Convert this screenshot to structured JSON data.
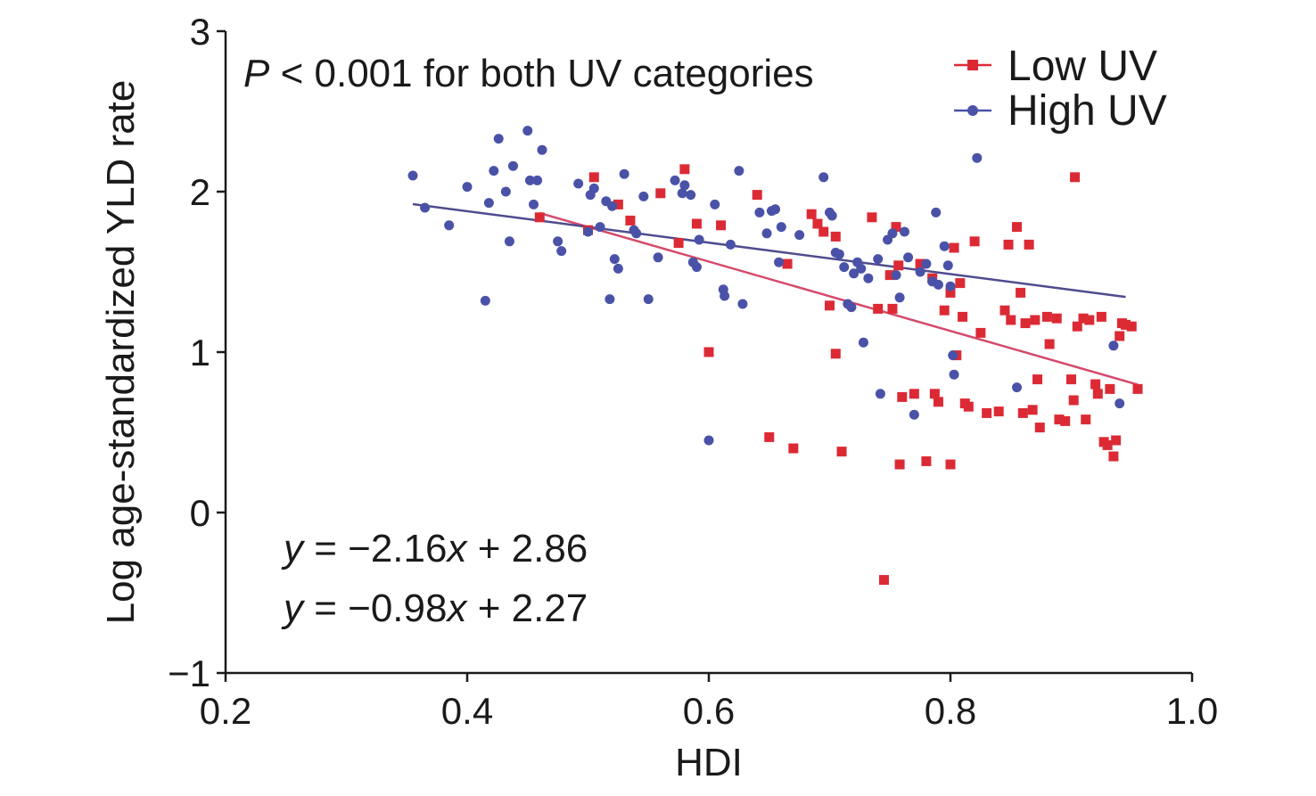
{
  "chart_data": {
    "type": "scatter",
    "title": "",
    "xlabel": "HDI",
    "ylabel": "Log age-standardized YLD rate",
    "xlim": [
      0.2,
      1.0
    ],
    "ylim": [
      -1,
      3
    ],
    "xticks": [
      "0.2",
      "0.4",
      "0.6",
      "0.8",
      "1.0"
    ],
    "yticks": [
      "−1",
      "0",
      "1",
      "2",
      "3"
    ],
    "grid": false,
    "legend_position": "top-right",
    "annotation": {
      "p_italic": "P",
      "p_rest": " < 0.001 for both UV categories"
    },
    "equations": [
      {
        "y": "y",
        "mid": " = −2.16",
        "x": "x",
        "tail": " + 2.86"
      },
      {
        "y": "y",
        "mid": " = −0.98",
        "x": "x",
        "tail": " + 2.27"
      }
    ],
    "series": [
      {
        "name": "Low UV",
        "color": "#dc2a35",
        "marker": "square",
        "line_color": "#d44a6c",
        "fit": {
          "slope": -2.16,
          "intercept": 2.86,
          "x_range": [
            0.46,
            0.955
          ]
        },
        "points": [
          [
            0.46,
            1.84
          ],
          [
            0.5,
            1.76
          ],
          [
            0.505,
            2.09
          ],
          [
            0.525,
            1.92
          ],
          [
            0.535,
            1.82
          ],
          [
            0.56,
            1.99
          ],
          [
            0.575,
            1.68
          ],
          [
            0.58,
            2.14
          ],
          [
            0.59,
            1.8
          ],
          [
            0.6,
            1.0
          ],
          [
            0.61,
            1.79
          ],
          [
            0.64,
            1.98
          ],
          [
            0.65,
            0.47
          ],
          [
            0.665,
            1.55
          ],
          [
            0.67,
            0.4
          ],
          [
            0.685,
            1.86
          ],
          [
            0.69,
            1.8
          ],
          [
            0.695,
            1.75
          ],
          [
            0.7,
            1.29
          ],
          [
            0.705,
            1.72
          ],
          [
            0.705,
            0.99
          ],
          [
            0.71,
            0.38
          ],
          [
            0.735,
            1.84
          ],
          [
            0.74,
            1.27
          ],
          [
            0.745,
            -0.42
          ],
          [
            0.75,
            1.48
          ],
          [
            0.752,
            1.27
          ],
          [
            0.755,
            1.78
          ],
          [
            0.757,
            1.54
          ],
          [
            0.758,
            0.3
          ],
          [
            0.76,
            0.72
          ],
          [
            0.77,
            0.74
          ],
          [
            0.775,
            1.55
          ],
          [
            0.78,
            0.32
          ],
          [
            0.785,
            1.46
          ],
          [
            0.787,
            0.74
          ],
          [
            0.79,
            0.69
          ],
          [
            0.795,
            1.26
          ],
          [
            0.8,
            1.37
          ],
          [
            0.8,
            0.3
          ],
          [
            0.803,
            1.65
          ],
          [
            0.805,
            0.98
          ],
          [
            0.808,
            1.43
          ],
          [
            0.81,
            1.22
          ],
          [
            0.812,
            0.68
          ],
          [
            0.815,
            0.66
          ],
          [
            0.82,
            1.69
          ],
          [
            0.825,
            1.12
          ],
          [
            0.83,
            0.62
          ],
          [
            0.84,
            0.63
          ],
          [
            0.845,
            1.26
          ],
          [
            0.848,
            1.67
          ],
          [
            0.85,
            1.2
          ],
          [
            0.855,
            1.78
          ],
          [
            0.858,
            1.37
          ],
          [
            0.86,
            0.62
          ],
          [
            0.862,
            1.18
          ],
          [
            0.865,
            1.67
          ],
          [
            0.868,
            0.64
          ],
          [
            0.87,
            1.2
          ],
          [
            0.872,
            0.83
          ],
          [
            0.874,
            0.53
          ],
          [
            0.88,
            1.22
          ],
          [
            0.882,
            1.05
          ],
          [
            0.888,
            1.21
          ],
          [
            0.89,
            0.58
          ],
          [
            0.895,
            0.57
          ],
          [
            0.9,
            0.83
          ],
          [
            0.902,
            0.7
          ],
          [
            0.903,
            2.09
          ],
          [
            0.905,
            1.16
          ],
          [
            0.91,
            1.21
          ],
          [
            0.912,
            0.58
          ],
          [
            0.915,
            1.2
          ],
          [
            0.92,
            0.8
          ],
          [
            0.922,
            0.74
          ],
          [
            0.925,
            1.22
          ],
          [
            0.927,
            0.44
          ],
          [
            0.93,
            0.42
          ],
          [
            0.932,
            0.77
          ],
          [
            0.935,
            0.35
          ],
          [
            0.937,
            0.45
          ],
          [
            0.94,
            1.1
          ],
          [
            0.942,
            1.18
          ],
          [
            0.945,
            1.17
          ],
          [
            0.95,
            1.16
          ],
          [
            0.955,
            0.77
          ]
        ]
      },
      {
        "name": "High UV",
        "color": "#4a52a8",
        "marker": "circle",
        "line_color": "#4e4c8e",
        "fit": {
          "slope": -0.98,
          "intercept": 2.27,
          "x_range": [
            0.355,
            0.945
          ]
        },
        "points": [
          [
            0.355,
            2.1
          ],
          [
            0.365,
            1.9
          ],
          [
            0.385,
            1.79
          ],
          [
            0.4,
            2.03
          ],
          [
            0.415,
            1.32
          ],
          [
            0.418,
            1.93
          ],
          [
            0.422,
            2.13
          ],
          [
            0.426,
            2.33
          ],
          [
            0.432,
            2.0
          ],
          [
            0.435,
            1.69
          ],
          [
            0.438,
            2.16
          ],
          [
            0.45,
            2.38
          ],
          [
            0.452,
            2.07
          ],
          [
            0.455,
            1.92
          ],
          [
            0.458,
            2.07
          ],
          [
            0.462,
            2.26
          ],
          [
            0.475,
            1.69
          ],
          [
            0.478,
            1.63
          ],
          [
            0.492,
            2.05
          ],
          [
            0.5,
            1.75
          ],
          [
            0.502,
            1.98
          ],
          [
            0.505,
            2.02
          ],
          [
            0.51,
            1.78
          ],
          [
            0.515,
            1.94
          ],
          [
            0.518,
            1.33
          ],
          [
            0.52,
            1.91
          ],
          [
            0.522,
            1.58
          ],
          [
            0.525,
            1.52
          ],
          [
            0.53,
            2.11
          ],
          [
            0.538,
            1.76
          ],
          [
            0.54,
            1.74
          ],
          [
            0.546,
            1.97
          ],
          [
            0.55,
            1.33
          ],
          [
            0.558,
            1.59
          ],
          [
            0.572,
            2.07
          ],
          [
            0.578,
            1.99
          ],
          [
            0.58,
            2.04
          ],
          [
            0.585,
            1.98
          ],
          [
            0.587,
            1.56
          ],
          [
            0.59,
            1.53
          ],
          [
            0.592,
            1.7
          ],
          [
            0.6,
            0.45
          ],
          [
            0.605,
            1.92
          ],
          [
            0.612,
            1.39
          ],
          [
            0.613,
            1.35
          ],
          [
            0.618,
            1.67
          ],
          [
            0.625,
            2.13
          ],
          [
            0.628,
            1.3
          ],
          [
            0.642,
            1.87
          ],
          [
            0.648,
            1.74
          ],
          [
            0.652,
            1.88
          ],
          [
            0.655,
            1.89
          ],
          [
            0.658,
            1.56
          ],
          [
            0.66,
            1.78
          ],
          [
            0.675,
            1.73
          ],
          [
            0.695,
            2.09
          ],
          [
            0.7,
            1.87
          ],
          [
            0.702,
            1.85
          ],
          [
            0.705,
            1.62
          ],
          [
            0.708,
            1.61
          ],
          [
            0.712,
            1.53
          ],
          [
            0.715,
            1.3
          ],
          [
            0.718,
            1.28
          ],
          [
            0.72,
            1.49
          ],
          [
            0.723,
            1.56
          ],
          [
            0.726,
            1.52
          ],
          [
            0.728,
            1.06
          ],
          [
            0.732,
            1.46
          ],
          [
            0.74,
            1.58
          ],
          [
            0.742,
            0.74
          ],
          [
            0.748,
            1.7
          ],
          [
            0.752,
            1.74
          ],
          [
            0.755,
            1.48
          ],
          [
            0.758,
            1.34
          ],
          [
            0.762,
            1.75
          ],
          [
            0.765,
            1.59
          ],
          [
            0.77,
            0.61
          ],
          [
            0.775,
            1.5
          ],
          [
            0.78,
            1.55
          ],
          [
            0.785,
            1.44
          ],
          [
            0.788,
            1.87
          ],
          [
            0.79,
            1.42
          ],
          [
            0.795,
            1.66
          ],
          [
            0.798,
            1.54
          ],
          [
            0.8,
            1.41
          ],
          [
            0.802,
            0.98
          ],
          [
            0.803,
            0.86
          ],
          [
            0.822,
            2.21
          ],
          [
            0.855,
            0.78
          ],
          [
            0.935,
            1.04
          ],
          [
            0.94,
            0.68
          ]
        ]
      }
    ]
  }
}
